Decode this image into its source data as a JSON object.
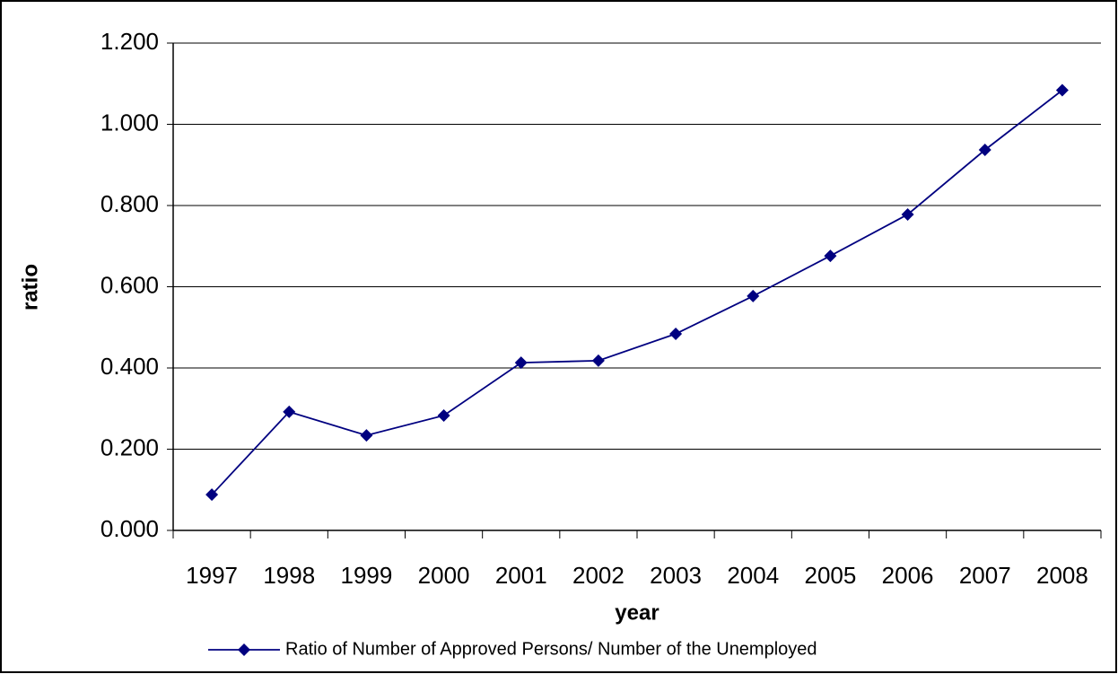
{
  "chart_data": {
    "type": "line",
    "x_label": "year",
    "y_label": "ratio",
    "categories": [
      "1997",
      "1998",
      "1999",
      "2000",
      "2001",
      "2002",
      "2003",
      "2004",
      "2005",
      "2006",
      "2007",
      "2008"
    ],
    "series": [
      {
        "name": "Ratio of Number of Approved Persons/ Number of the Unemployed",
        "color": "#000080",
        "values": [
          0.088,
          0.292,
          0.234,
          0.283,
          0.413,
          0.418,
          0.484,
          0.577,
          0.676,
          0.778,
          0.937,
          1.084
        ]
      }
    ],
    "ylim": [
      0,
      1.2
    ],
    "yticks": [
      {
        "value": 0,
        "label": "0.000"
      },
      {
        "value": 0.2,
        "label": "0.200"
      },
      {
        "value": 0.4,
        "label": "0.400"
      },
      {
        "value": 0.6,
        "label": "0.600"
      },
      {
        "value": 0.8,
        "label": "0.800"
      },
      {
        "value": 1.0,
        "label": "1.000"
      },
      {
        "value": 1.2,
        "label": "1.200"
      }
    ],
    "grid": true,
    "legend": "bottom",
    "marker": "diamond"
  }
}
